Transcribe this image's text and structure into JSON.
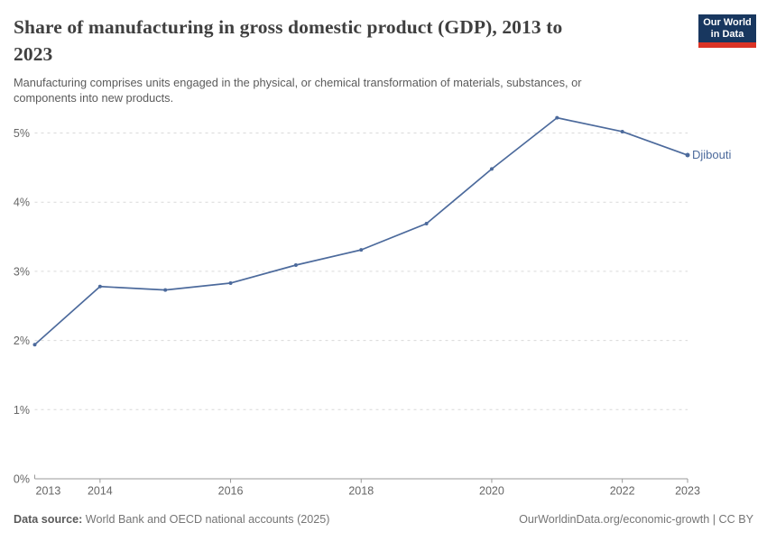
{
  "header": {
    "title": "Share of manufacturing in gross domestic product (GDP), 2013 to 2023",
    "title_lines": [
      "Share of manufacturing in gross domestic product (GDP), 2013 to",
      "2023"
    ],
    "subtitle": "Manufacturing comprises units engaged in the physical, or chemical transformation of materials, substances, or components into new products.",
    "subtitle_lines": [
      "Manufacturing comprises units engaged in the physical, or chemical transformation of materials, substances, or",
      "components into new products."
    ],
    "logo_lines": [
      "Our World",
      "in Data"
    ]
  },
  "footer": {
    "source_label": "Data source:",
    "source_value": "World Bank and OECD national accounts (2025)",
    "credit": "OurWorldinData.org/economic-growth | CC BY"
  },
  "colors": {
    "accent_line": "#4C6A9C",
    "logo_bg": "#18375f",
    "logo_red": "#dc3325",
    "gridline": "#d9d9d9",
    "axis_text": "#666666"
  },
  "chart_data": {
    "type": "line",
    "title": "Share of manufacturing in gross domestic product (GDP), 2013 to 2023",
    "x": [
      2013,
      2014,
      2015,
      2016,
      2017,
      2018,
      2019,
      2020,
      2021,
      2022,
      2023
    ],
    "series": [
      {
        "name": "Djibouti",
        "color": "#4C6A9C",
        "values": [
          1.94,
          2.78,
          2.73,
          2.83,
          3.09,
          3.31,
          3.69,
          4.48,
          5.22,
          5.02,
          4.68
        ]
      }
    ],
    "xlabel": "",
    "ylabel": "",
    "ylim": [
      0,
      5.5
    ],
    "y_ticks": [
      0,
      1,
      2,
      3,
      4,
      5
    ],
    "y_tick_suffix": "%",
    "x_ticks": [
      2013,
      2014,
      2016,
      2018,
      2020,
      2022,
      2023
    ],
    "grid": "horizontal-dashed",
    "legend": "end-of-line-label"
  }
}
